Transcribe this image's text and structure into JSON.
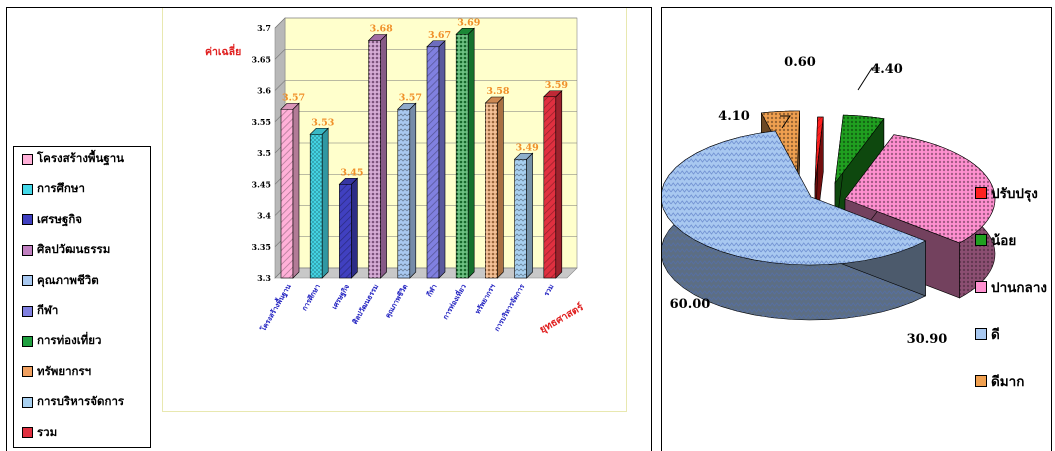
{
  "legend_left": [
    {
      "label": "โครงสร้างพื้นฐาน",
      "color": "#ffb0d8"
    },
    {
      "label": "การศึกษา",
      "color": "#44d8e8"
    },
    {
      "label": "เศรษฐกิจ",
      "color": "#4040c0"
    },
    {
      "label": "ศิลปวัฒนธรรม",
      "color": "#c080c0"
    },
    {
      "label": "คุณภาพชีวิต",
      "color": "#a8c8f0"
    },
    {
      "label": "กีฬา",
      "color": "#8080e0"
    },
    {
      "label": "การท่องเที่ยว",
      "color": "#20a040"
    },
    {
      "label": "ทรัพยากรฯ",
      "color": "#f0a060"
    },
    {
      "label": "การบริหารจัดการ",
      "color": "#a8d0f0"
    },
    {
      "label": "รวม",
      "color": "#e03040"
    }
  ],
  "legend_right": [
    {
      "label": "ปรับปรุง",
      "color": "#ff2020"
    },
    {
      "label": "น้อย",
      "color": "#20a020"
    },
    {
      "label": "ปานกลาง",
      "color": "#ff90d0"
    },
    {
      "label": "ดี",
      "color": "#a8c8f0"
    },
    {
      "label": "ดีมาก",
      "color": "#f0a050"
    }
  ],
  "chart_data": [
    {
      "type": "bar",
      "ylabel": "ค่าเฉลี่ย",
      "xlabel": "ยุทธศาสตร์",
      "ylim": [
        3.3,
        3.7
      ],
      "yticks": [
        "3.3",
        "3.35",
        "3.4",
        "3.45",
        "3.5",
        "3.55",
        "3.6",
        "3.65",
        "3.7"
      ],
      "categories": [
        "โครงสร้างพื้นฐาน",
        "การศึกษา",
        "เศรษฐกิจ",
        "ศิลปวัฒนธรรม",
        "คุณภาพชีวิต",
        "กีฬา",
        "การท่องเที่ยว",
        "ทรัพยากรฯ",
        "การบริหารจัดการ",
        "รวม"
      ],
      "values": [
        3.57,
        3.53,
        3.45,
        3.68,
        3.57,
        3.67,
        3.69,
        3.58,
        3.49,
        3.59
      ],
      "value_labels": [
        "3.57",
        "3.53",
        "3.45",
        "3.68",
        "3.57",
        "3.67",
        "3.69",
        "3.58",
        "3.49",
        "3.59"
      ],
      "grid": true,
      "legend": "left"
    },
    {
      "type": "pie",
      "categories": [
        "ปรับปรุง",
        "น้อย",
        "ปานกลาง",
        "ดี",
        "ดีมาก"
      ],
      "values": [
        0.6,
        4.4,
        30.9,
        60.0,
        4.1
      ],
      "value_labels": [
        "0.60",
        "4.40",
        "30.90",
        "60.00",
        "4.10"
      ],
      "legend": "right"
    }
  ]
}
